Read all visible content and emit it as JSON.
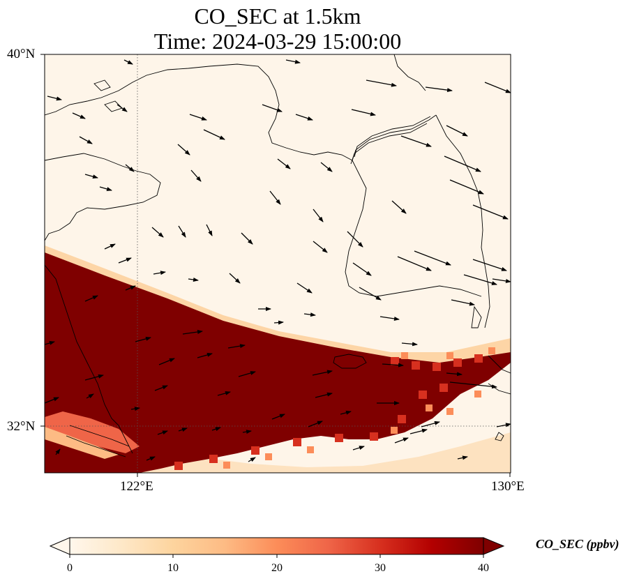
{
  "title_line1": "CO_SEC at 1.5km",
  "title_line2": "Time: 2024-03-29 15:00:00",
  "map": {
    "extent": {
      "lon_min": 120,
      "lon_max": 130,
      "lat_min": 31,
      "lat_max": 40
    },
    "lon_ticks": [
      {
        "value": 122,
        "label": "122°E"
      },
      {
        "value": 130,
        "label": "130°E"
      }
    ],
    "lat_ticks": [
      {
        "value": 40,
        "label": "40°N"
      },
      {
        "value": 32,
        "label": "32°N"
      }
    ],
    "gridlines": "dotted",
    "field": "CO_SEC",
    "high_band": "southwest-to-east band of high concentration (>40 ppbv) across the lower half of the map"
  },
  "colorbar": {
    "label": "CO_SEC (ppbv)",
    "min": 0,
    "max": 40,
    "ticks": [
      "0",
      "10",
      "20",
      "30",
      "40"
    ],
    "extend": "both",
    "colormap": [
      "#fff7ec",
      "#fee8c8",
      "#fdd49e",
      "#fdbb84",
      "#fc8d59",
      "#ef6548",
      "#d7301f",
      "#b30000",
      "#7f0000"
    ]
  }
}
